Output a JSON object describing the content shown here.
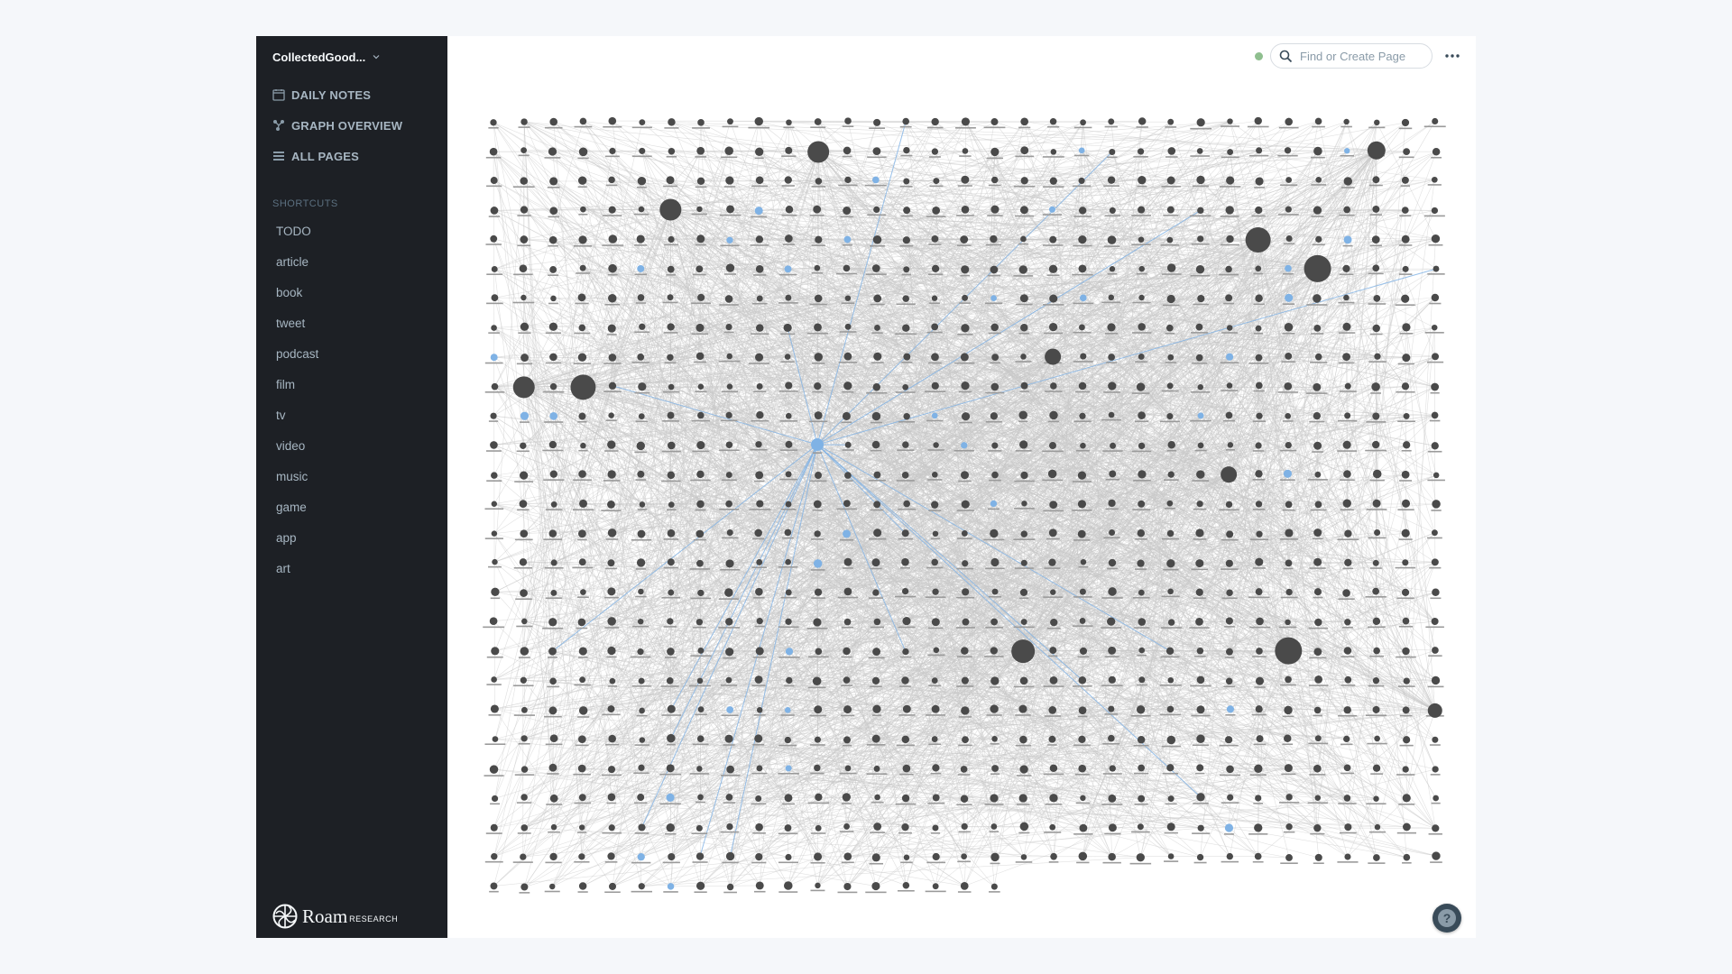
{
  "graph": {
    "name": "CollectedGood...",
    "accent": "#7fb2e5",
    "node_color": "#4a4a4a",
    "edge_color": "#c8c8c8"
  },
  "nav": [
    {
      "label": "DAILY NOTES",
      "icon": "calendar-icon"
    },
    {
      "label": "GRAPH OVERVIEW",
      "icon": "graph-icon"
    },
    {
      "label": "ALL PAGES",
      "icon": "list-icon"
    }
  ],
  "shortcuts": {
    "title": "SHORTCUTS",
    "items": [
      "TODO",
      "article",
      "book",
      "tweet",
      "podcast",
      "film",
      "tv",
      "video",
      "music",
      "game",
      "app",
      "art"
    ]
  },
  "brand": {
    "name": "Roam",
    "suffix": "RESEARCH"
  },
  "search": {
    "placeholder": "Find or Create Page",
    "value": ""
  },
  "help": {
    "label": "?"
  }
}
